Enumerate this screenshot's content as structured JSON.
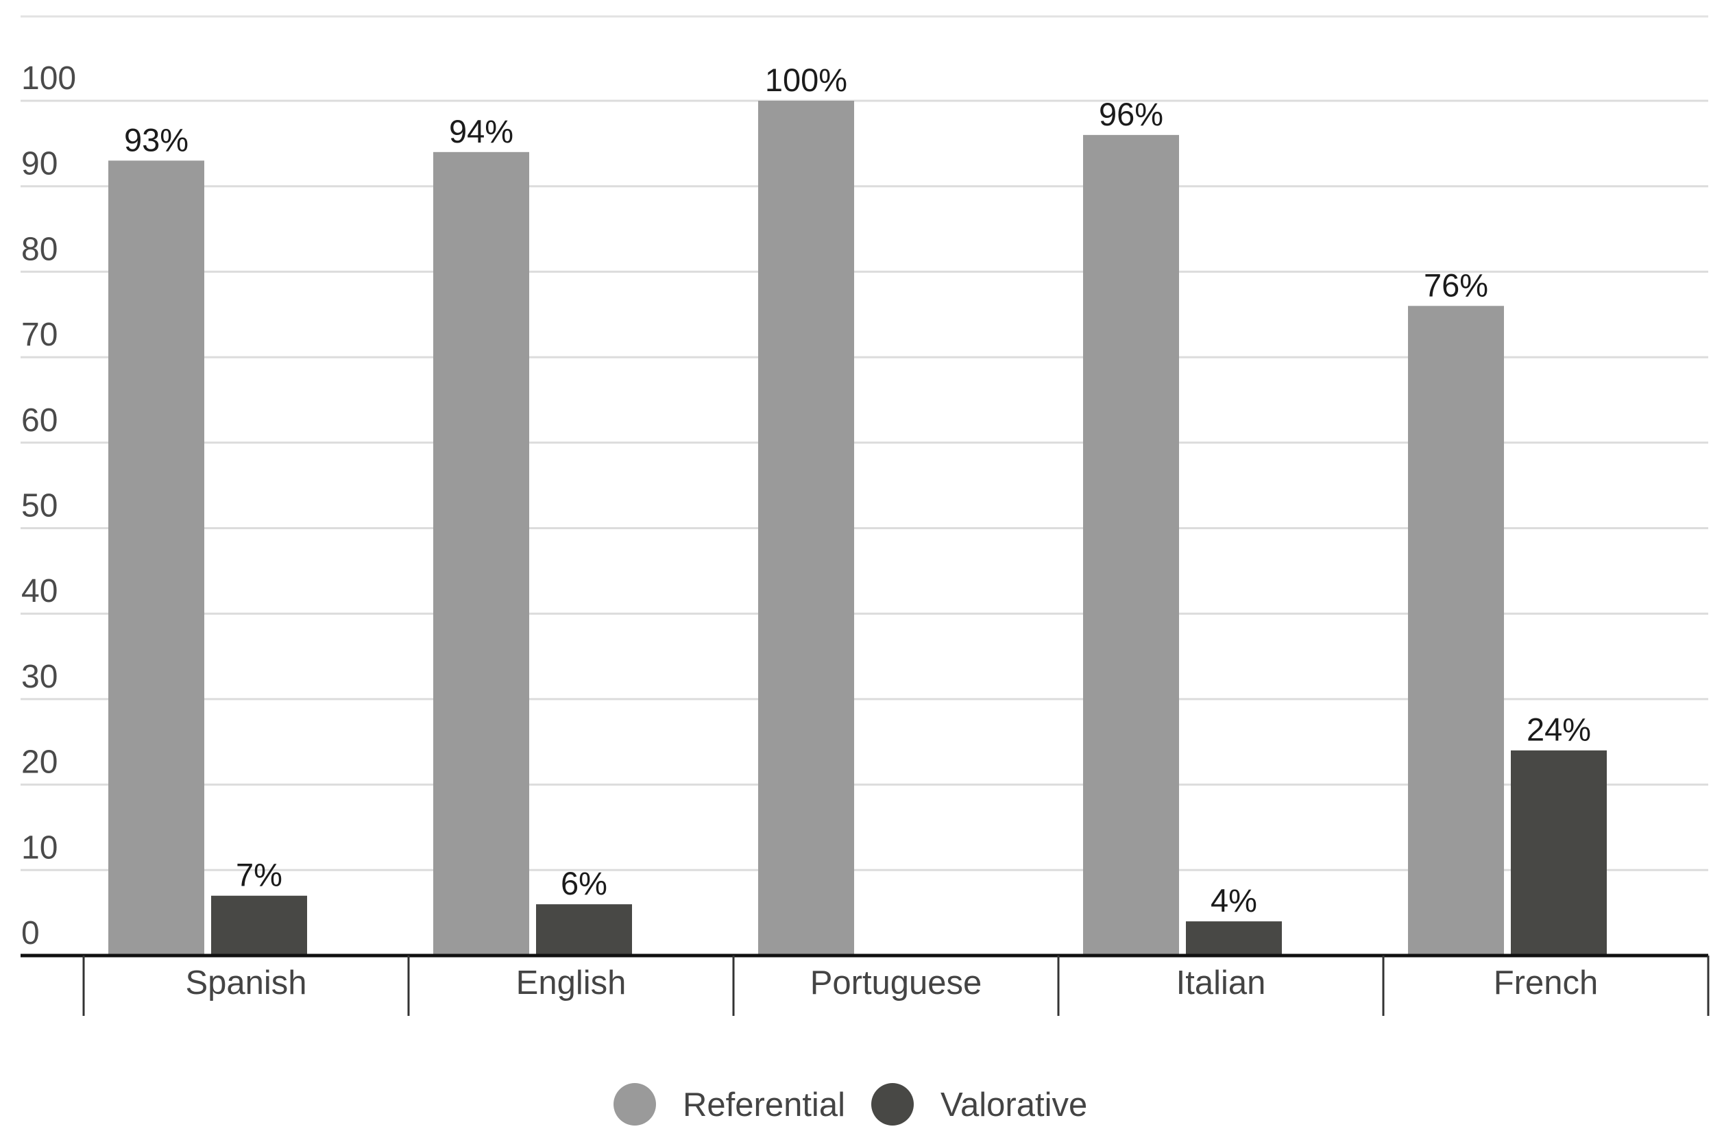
{
  "chart_data": {
    "type": "bar",
    "title": "",
    "xlabel": "",
    "ylabel": "",
    "ylim": [
      0,
      100
    ],
    "yticks": [
      0,
      10,
      20,
      30,
      40,
      50,
      60,
      70,
      80,
      90,
      100
    ],
    "grid": true,
    "legend_position": "bottom-center",
    "categories": [
      "Spanish",
      "English",
      "Portuguese",
      "Italian",
      "French"
    ],
    "series": [
      {
        "name": "Referential",
        "color": "#9a9a9a",
        "values": [
          93,
          94,
          100,
          96,
          76
        ],
        "labels": [
          "93%",
          "94%",
          "100%",
          "96%",
          "76%"
        ]
      },
      {
        "name": "Valorative",
        "color": "#484845",
        "values": [
          7,
          6,
          null,
          4,
          24
        ],
        "labels": [
          "7%",
          "6%",
          null,
          "4%",
          "24%"
        ]
      }
    ]
  }
}
